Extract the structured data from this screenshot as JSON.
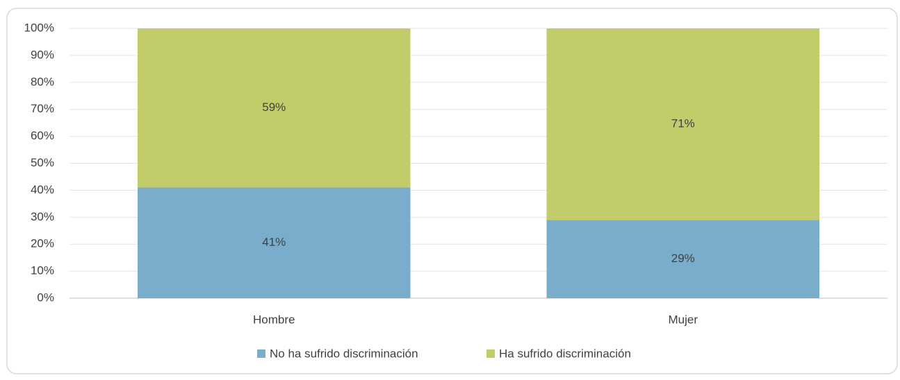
{
  "chart_data": {
    "type": "stacked_bar",
    "categories": [
      "Hombre",
      "Mujer"
    ],
    "series": [
      {
        "name": "No ha sufrido discriminación",
        "color": "#7aaccb",
        "values": [
          41,
          29
        ],
        "value_labels": [
          "41%",
          "29%"
        ]
      },
      {
        "name": "Ha sufrido discriminación",
        "color": "#c3cc6a",
        "values": [
          59,
          71
        ],
        "value_labels": [
          "59%",
          "71%"
        ]
      }
    ],
    "ylim": [
      0,
      100
    ],
    "yticks": [
      {
        "value": 0,
        "label": "0%"
      },
      {
        "value": 10,
        "label": "10%"
      },
      {
        "value": 20,
        "label": "20%"
      },
      {
        "value": 30,
        "label": "30%"
      },
      {
        "value": 40,
        "label": "40%"
      },
      {
        "value": 50,
        "label": "50%"
      },
      {
        "value": 60,
        "label": "60%"
      },
      {
        "value": 70,
        "label": "70%"
      },
      {
        "value": 80,
        "label": "80%"
      },
      {
        "value": 90,
        "label": "90%"
      },
      {
        "value": 100,
        "label": "100%"
      }
    ],
    "grid": true,
    "legend": "bottom"
  }
}
